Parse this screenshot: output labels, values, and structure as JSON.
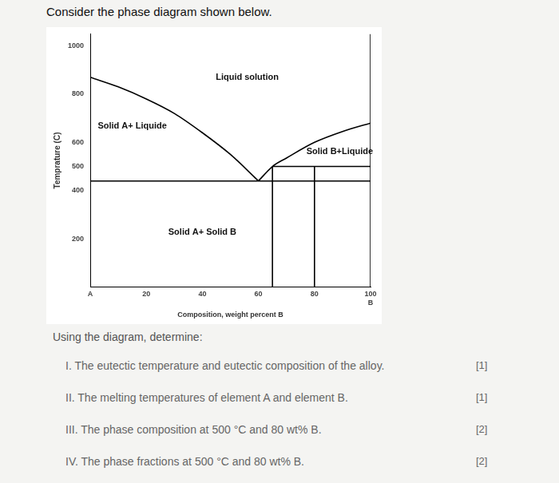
{
  "heading": "Consider the phase diagram shown below.",
  "chart_data": {
    "type": "line",
    "x_label": "Composition, weight percent B",
    "y_label": "Temprature (C)",
    "color": "#000000",
    "grid": false,
    "xlim": [
      0,
      100
    ],
    "xticks": [
      {
        "value": 0,
        "label": "A"
      },
      20,
      40,
      60,
      80,
      {
        "value": 100,
        "label": "100\nB"
      }
    ],
    "ylim": [
      0,
      1050
    ],
    "yticks": [
      200,
      400,
      500,
      600,
      800,
      1000
    ],
    "series": [
      {
        "x": [
          0,
          10,
          20,
          30,
          40,
          50,
          60
        ],
        "values": [
          870,
          830,
          780,
          720,
          640,
          550,
          440
        ]
      },
      {
        "x": [
          60,
          65,
          70,
          80,
          90,
          100
        ],
        "values": [
          440,
          500,
          535,
          600,
          645,
          680
        ]
      },
      {
        "x": [
          0,
          100
        ],
        "values": [
          440,
          440
        ]
      },
      {
        "x": [
          65,
          100
        ],
        "values": [
          500,
          500
        ]
      },
      {
        "x": [
          65,
          65
        ],
        "values": [
          0,
          500
        ]
      },
      {
        "x": [
          80,
          80
        ],
        "values": [
          0,
          500
        ]
      },
      {
        "x": [
          0,
          0
        ],
        "values": [
          0,
          1050
        ]
      },
      {
        "x": [
          100,
          100
        ],
        "values": [
          0,
          1050
        ]
      }
    ],
    "annotations": [
      {
        "text": "Liquid solution",
        "x": 56,
        "y": 870
      },
      {
        "text": "Solid A+ Liquide",
        "x": 15,
        "y": 667
      },
      {
        "text": "Solid B+Liquide",
        "x": 89,
        "y": 560
      },
      {
        "text": "Solid A+ Solid B",
        "x": 40,
        "y": 227
      }
    ]
  },
  "questions": {
    "intro": "Using the diagram, determine:",
    "items": [
      {
        "text": "I. The eutectic temperature and eutectic composition of the alloy.",
        "marks": "[1]"
      },
      {
        "text": "II. The melting temperatures of element A and element B.",
        "marks": "[1]"
      },
      {
        "text": "III. The phase composition at 500 °C and 80 wt% B.",
        "marks": "[2]"
      },
      {
        "text": "IV. The phase fractions at 500 °C and 80 wt% B.",
        "marks": "[2]"
      }
    ]
  }
}
